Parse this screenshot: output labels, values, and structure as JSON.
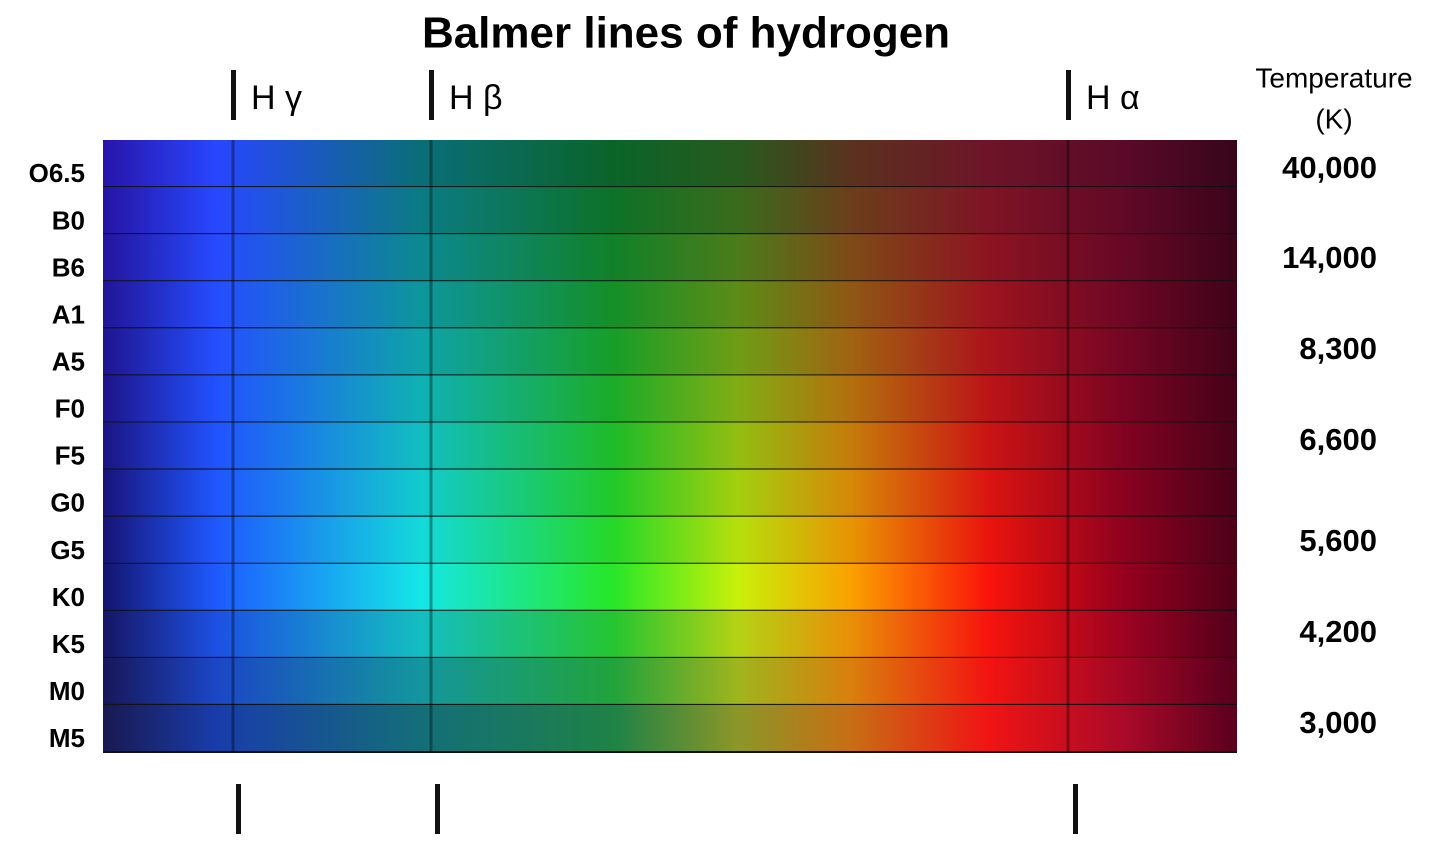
{
  "title": "Balmer lines of hydrogen",
  "balmer_lines": [
    "H γ",
    "H β",
    "H α"
  ],
  "temperature_header": [
    "Temperature",
    "(K)"
  ],
  "spectral_classes": [
    "O6.5",
    "B0",
    "B6",
    "A1",
    "A5",
    "F0",
    "F5",
    "G0",
    "G5",
    "K0",
    "K5",
    "M0",
    "M5"
  ],
  "temperatures": [
    "40,000",
    "14,000",
    "8,300",
    "6,600",
    "5,600",
    "4,200",
    "3,000"
  ]
}
